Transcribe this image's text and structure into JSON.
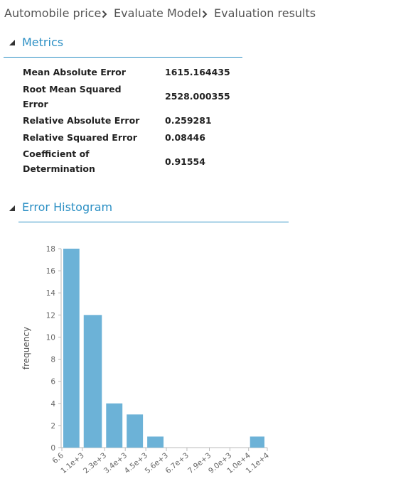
{
  "breadcrumb": [
    "Automobile price",
    "Evaluate Model",
    "Evaluation results"
  ],
  "metrics": {
    "title": "Metrics",
    "rows": [
      [
        "Mean Absolute Error",
        "1615.164435"
      ],
      [
        "Root Mean Squared Error",
        "2528.000355"
      ],
      [
        "Relative Absolute Error",
        "0.259281"
      ],
      [
        "Relative Squared Error",
        "0.08446"
      ],
      [
        "Coefficient of Determination",
        "0.91554"
      ]
    ]
  },
  "histogram_title": "Error Histogram",
  "chart_data": {
    "type": "histogram",
    "ylabel": "frequency",
    "bins": [
      {
        "value": 6.6,
        "label": "6.6"
      },
      {
        "value": 1100,
        "label": "1.1e+3"
      },
      {
        "value": 2300,
        "label": "2.3e+3"
      },
      {
        "value": 3400,
        "label": "3.4e+3"
      },
      {
        "value": 4500,
        "label": "4.5e+3"
      },
      {
        "value": 5600,
        "label": "5.6e+3"
      },
      {
        "value": 6700,
        "label": "6.7e+3"
      },
      {
        "value": 7900,
        "label": "7.9e+3"
      },
      {
        "value": 9000,
        "label": "9.0e+3"
      },
      {
        "value": 10000,
        "label": "1.0e+4"
      },
      {
        "value": 11000,
        "label": "1.1e+4"
      }
    ],
    "values": [
      18,
      12,
      4,
      3,
      1,
      0,
      0,
      0,
      0,
      1
    ],
    "color": "#6cb2d7",
    "xlim": [
      6.6,
      11000
    ],
    "ylim": [
      0,
      18
    ],
    "yticks": [
      0,
      2,
      4,
      6,
      8,
      10,
      12,
      14,
      16,
      18
    ]
  }
}
